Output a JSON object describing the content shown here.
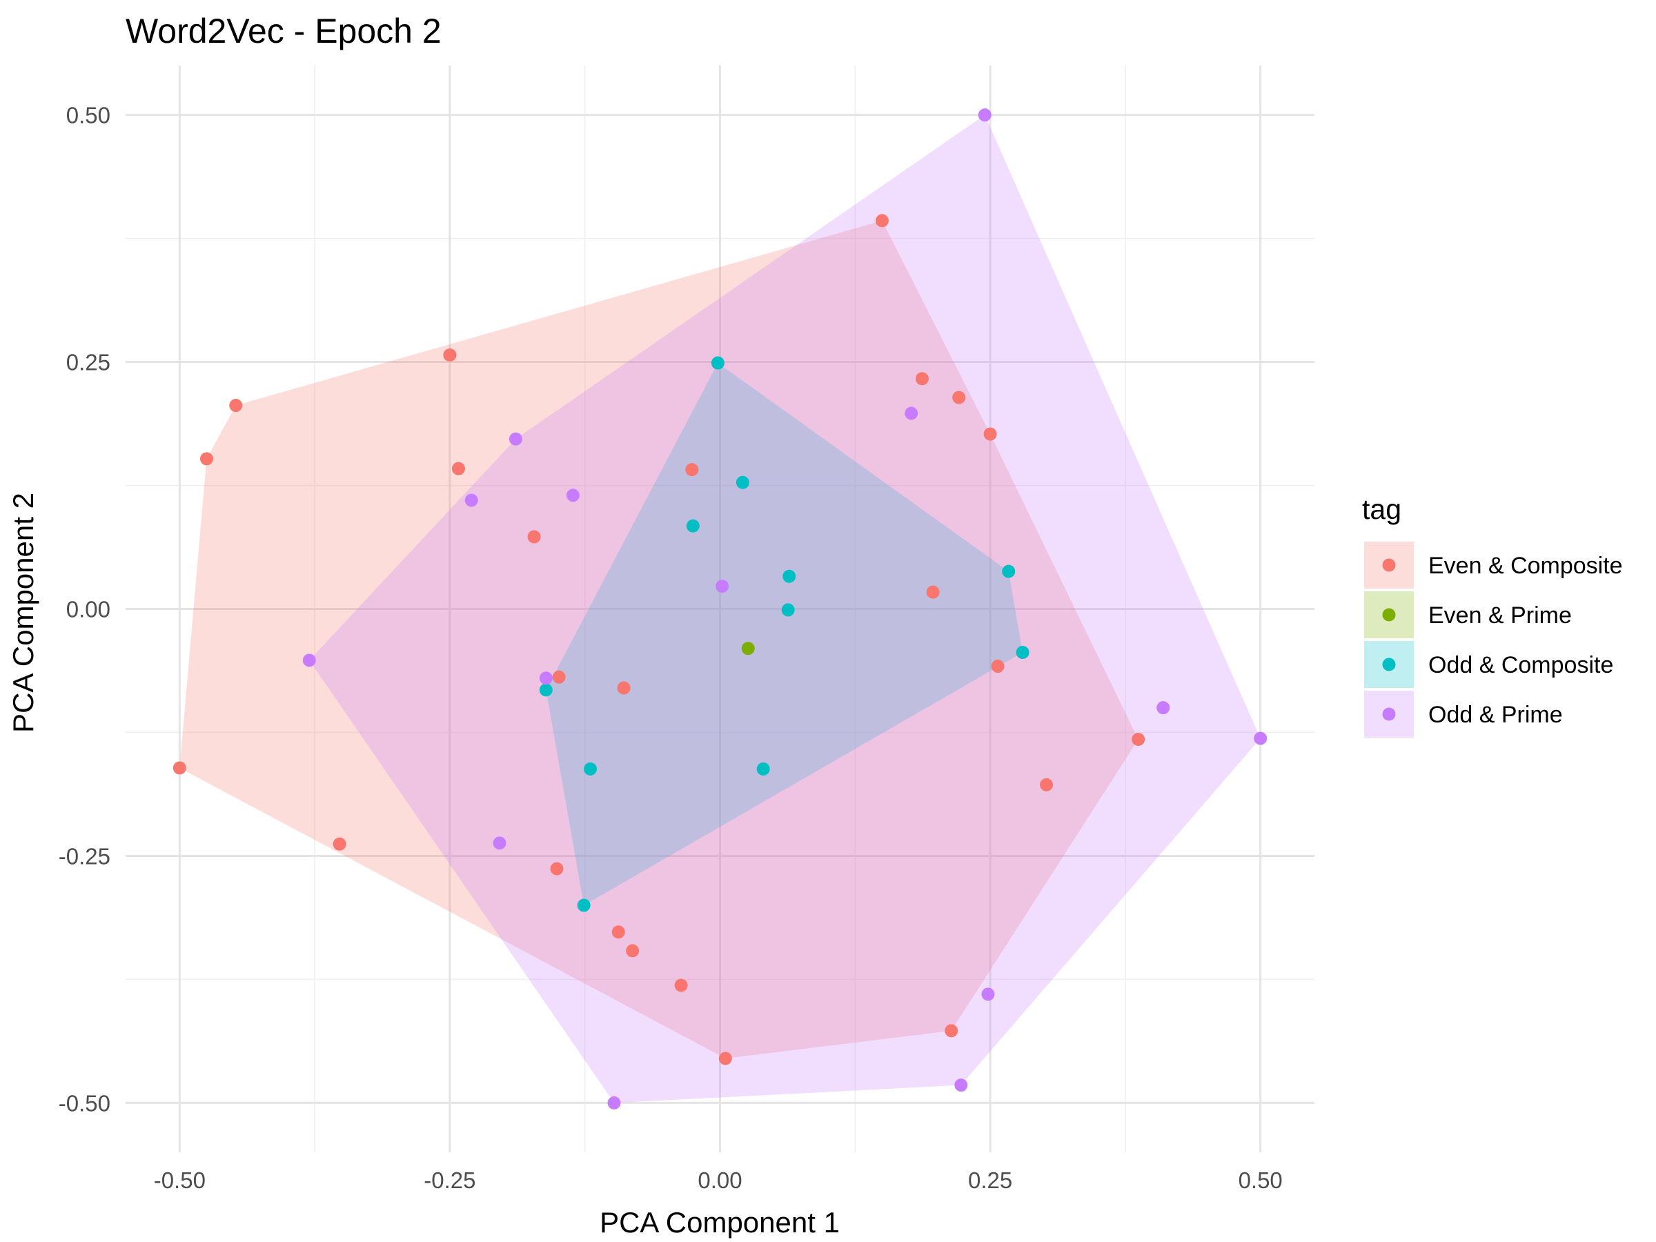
{
  "chart_data": {
    "type": "scatter",
    "title": "Word2Vec - Epoch 2",
    "xlabel": "PCA Component 1",
    "ylabel": "PCA Component 2",
    "xlim": [
      -0.55,
      0.55
    ],
    "ylim": [
      -0.55,
      0.55
    ],
    "x_ticks": [
      -0.5,
      -0.25,
      0,
      0.25,
      0.5
    ],
    "x_tick_labels": [
      "-0.50",
      "-0.25",
      "0.00",
      "0.25",
      "0.50"
    ],
    "y_ticks": [
      -0.5,
      -0.25,
      0,
      0.25,
      0.5
    ],
    "y_tick_labels": [
      "-0.50",
      "-0.25",
      "0.00",
      "0.25",
      "0.50"
    ],
    "grid": true,
    "legend": {
      "title": "tag",
      "position": "right"
    },
    "overlay": "convex hull per series",
    "series": [
      {
        "name": "Even & Composite",
        "color": "#F8766D",
        "points": [
          [
            0.15,
            0.393
          ],
          [
            0.187,
            0.233
          ],
          [
            0.221,
            0.214
          ],
          [
            0.25,
            0.177
          ],
          [
            -0.25,
            0.257
          ],
          [
            -0.448,
            0.206
          ],
          [
            -0.475,
            0.152
          ],
          [
            -0.242,
            0.142
          ],
          [
            -0.026,
            0.141
          ],
          [
            -0.172,
            0.073
          ],
          [
            0.197,
            0.017
          ],
          [
            0.257,
            -0.058
          ],
          [
            -0.149,
            -0.069
          ],
          [
            -0.089,
            -0.08
          ],
          [
            0.387,
            -0.132
          ],
          [
            0.302,
            -0.178
          ],
          [
            -0.5,
            -0.161
          ],
          [
            -0.352,
            -0.238
          ],
          [
            -0.151,
            -0.263
          ],
          [
            -0.094,
            -0.327
          ],
          [
            -0.081,
            -0.346
          ],
          [
            -0.036,
            -0.381
          ],
          [
            0.214,
            -0.427
          ],
          [
            0.005,
            -0.455
          ]
        ]
      },
      {
        "name": "Even & Prime",
        "color": "#7CAE00",
        "points": [
          [
            0.026,
            -0.04
          ]
        ]
      },
      {
        "name": "Odd & Composite",
        "color": "#00BFC4",
        "points": [
          [
            -0.002,
            0.249
          ],
          [
            0.021,
            0.128
          ],
          [
            -0.025,
            0.084
          ],
          [
            0.064,
            0.033
          ],
          [
            0.267,
            0.038
          ],
          [
            0.063,
            -0.001
          ],
          [
            0.28,
            -0.044
          ],
          [
            -0.161,
            -0.082
          ],
          [
            -0.12,
            -0.162
          ],
          [
            0.04,
            -0.162
          ],
          [
            -0.126,
            -0.3
          ]
        ]
      },
      {
        "name": "Odd & Prime",
        "color": "#C77CFF",
        "points": [
          [
            0.245,
            0.5
          ],
          [
            0.177,
            0.198
          ],
          [
            -0.189,
            0.172
          ],
          [
            -0.136,
            0.115
          ],
          [
            -0.23,
            0.11
          ],
          [
            0.002,
            0.023
          ],
          [
            -0.38,
            -0.052
          ],
          [
            -0.161,
            -0.07
          ],
          [
            0.41,
            -0.1
          ],
          [
            0.5,
            -0.131
          ],
          [
            -0.204,
            -0.237
          ],
          [
            0.248,
            -0.39
          ],
          [
            0.223,
            -0.482
          ],
          [
            -0.098,
            -0.5
          ]
        ]
      }
    ]
  }
}
